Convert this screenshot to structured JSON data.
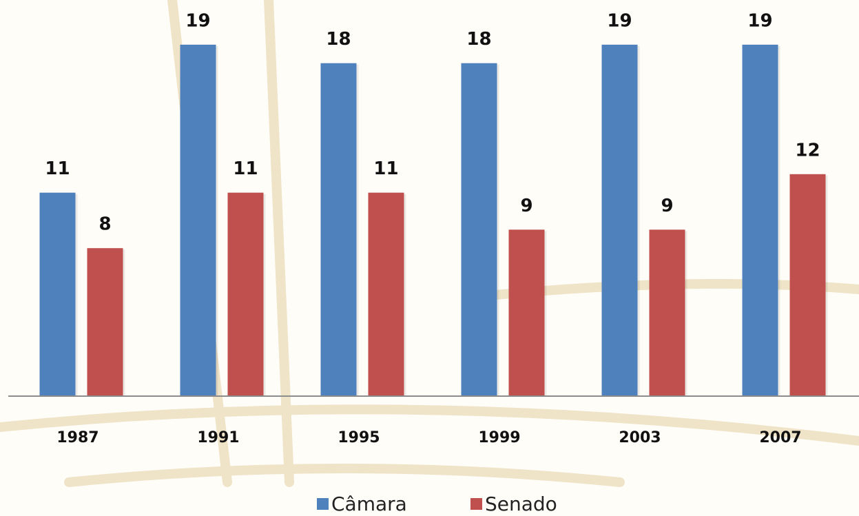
{
  "chart_data": {
    "type": "bar",
    "categories": [
      "1987",
      "1991",
      "1995",
      "1999",
      "2003",
      "2007"
    ],
    "series": [
      {
        "name": "Câmara",
        "color": "#4f81bd",
        "values": [
          11,
          19,
          18,
          18,
          19,
          19
        ]
      },
      {
        "name": "Senado",
        "color": "#c0504d",
        "values": [
          8,
          11,
          11,
          9,
          9,
          12
        ]
      }
    ],
    "ylim": [
      0,
      20
    ]
  }
}
